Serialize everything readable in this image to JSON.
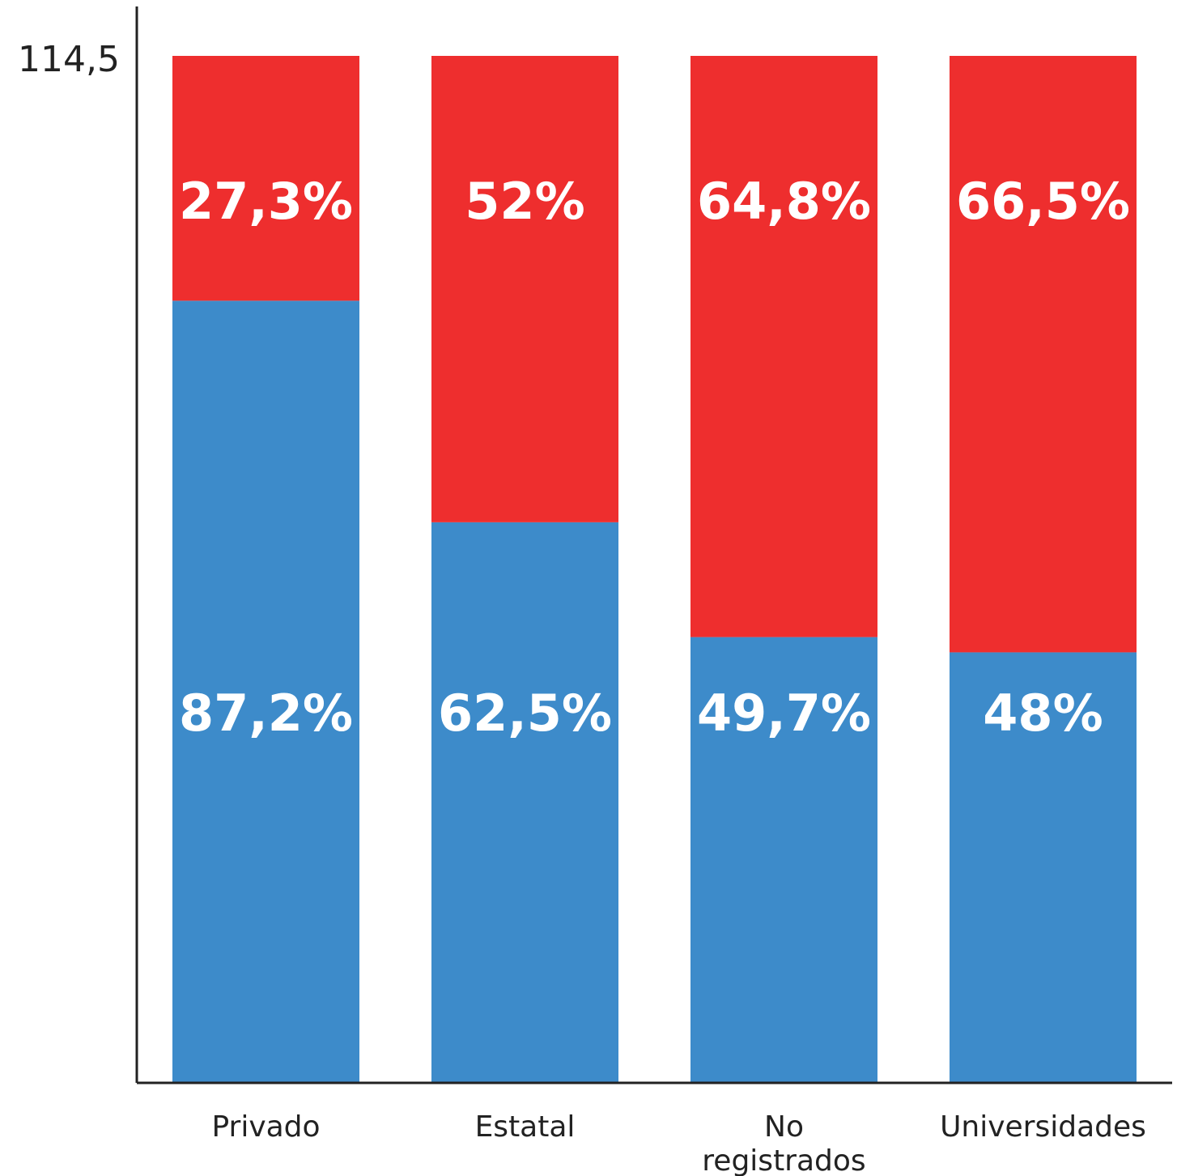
{
  "chart_data": {
    "type": "bar",
    "stacked": true,
    "categories": [
      "Privado",
      "Estatal",
      "No registrados",
      "Universidades"
    ],
    "category_label_lines": [
      [
        "Privado"
      ],
      [
        "Estatal"
      ],
      [
        "No",
        "registrados"
      ],
      [
        "Universidades"
      ]
    ],
    "series": [
      {
        "color": "#3d8bca",
        "values": [
          87.2,
          62.5,
          49.7,
          48
        ],
        "labels": [
          "87,2%",
          "62,5%",
          "49,7%",
          "48%"
        ]
      },
      {
        "color": "#ee2e2e",
        "values": [
          27.3,
          52,
          64.8,
          66.5
        ],
        "labels": [
          "27,3%",
          "52%",
          "64,8%",
          "66,5%"
        ]
      }
    ],
    "ylim": [
      0,
      114.5
    ],
    "yticks": [
      114.5
    ],
    "ytick_labels": [
      "114,5"
    ],
    "title": "",
    "xlabel": "",
    "ylabel": "",
    "grid": false,
    "legend": "none"
  }
}
